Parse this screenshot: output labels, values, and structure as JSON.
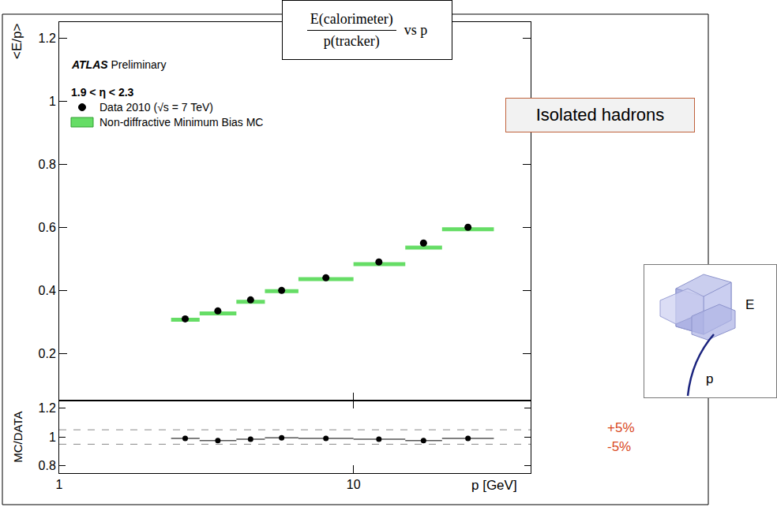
{
  "title": {
    "numerator": "E(calorimeter)",
    "denominator": "p(tracker)",
    "suffix": "vs  p"
  },
  "label_box": "Isolated hadrons",
  "inset": {
    "calorimeter_label": "E",
    "track_label": "p"
  },
  "chart_data": [
    {
      "type": "scatter",
      "y_label": "<E/p>",
      "annotations": [
        "ATLAS Preliminary",
        "1.9 < η < 2.3"
      ],
      "x": [
        2.68,
        3.46,
        4.47,
        5.7,
        8.06,
        12.2,
        17.3,
        24.5
      ],
      "bins": [
        2.4,
        3,
        4,
        5,
        6.5,
        10,
        15,
        20,
        30
      ],
      "series": [
        {
          "name": "Data 2010 (√s = 7 TeV)",
          "color": "#000000",
          "marker": "circle",
          "values": [
            0.31,
            0.335,
            0.37,
            0.4,
            0.44,
            0.49,
            0.55,
            0.6
          ]
        },
        {
          "name": "Non-diffractive Minimum Bias MC",
          "color": "#66dd66",
          "marker": "band",
          "values": [
            0.307,
            0.327,
            0.364,
            0.398,
            0.436,
            0.483,
            0.536,
            0.594
          ]
        }
      ],
      "log": "x",
      "xlim": [
        1,
        40
      ],
      "xticks": [
        1,
        10
      ],
      "ylim": [
        0.05,
        1.25
      ],
      "yticks": [
        0.2,
        0.4,
        0.6,
        0.8,
        1,
        1.2
      ],
      "tick_labels": "y",
      "legend": "upper left"
    },
    {
      "type": "scatter",
      "x_label": "p [GeV]",
      "y_label": "MC/DATA",
      "x": [
        2.68,
        3.46,
        4.47,
        5.7,
        8.06,
        12.2,
        17.3,
        24.5
      ],
      "bins": [
        2.4,
        3,
        4,
        5,
        6.5,
        10,
        15,
        20,
        30
      ],
      "values": [
        0.99,
        0.975,
        0.985,
        0.995,
        0.99,
        0.985,
        0.975,
        0.99
      ],
      "color": "#000000",
      "marker": "circle",
      "reference_lines": [
        {
          "value": 1.05,
          "label": "+5%"
        },
        {
          "value": 0.95,
          "label": "-5%"
        }
      ],
      "log": "x",
      "xlim": [
        1,
        40
      ],
      "xticks": [
        1,
        10
      ],
      "ylim": [
        0.75,
        1.25
      ],
      "yticks": [
        0.8,
        1,
        1.2
      ]
    }
  ]
}
